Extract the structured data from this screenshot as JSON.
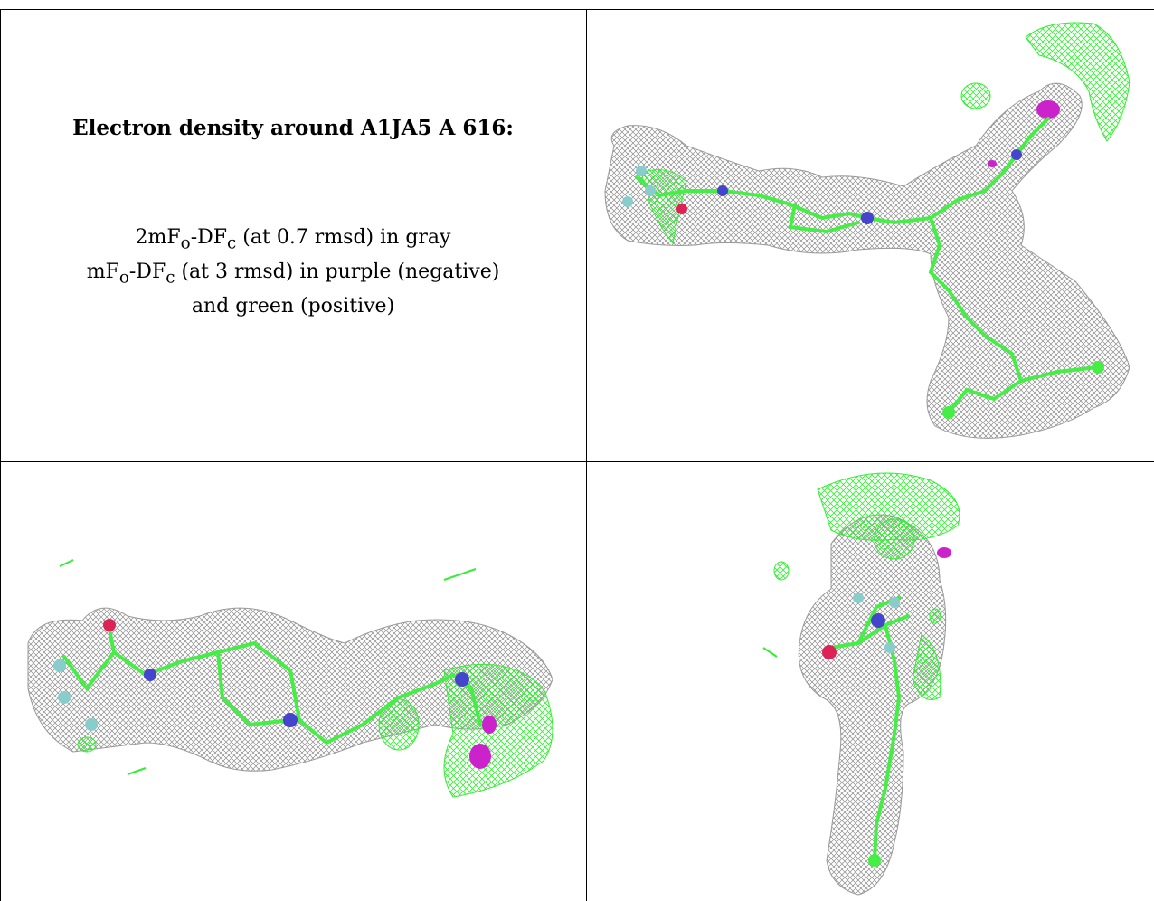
{
  "caption": {
    "title": "Electron density around A1JA5 A 616:",
    "line1": {
      "prefix": "2mF",
      "sub_o": "o",
      "mid": "-DF",
      "sub_c": "c",
      "suffix": " (at 0.7 rmsd) in gray"
    },
    "line2": {
      "prefix": "mF",
      "sub_o": "o",
      "mid": "-DF",
      "sub_c": "c",
      "suffix": " (at 3 rmsd) in purple (negative)"
    },
    "line3": "and green (positive)"
  },
  "colors": {
    "density_2fofc": "#8a8a8a",
    "difference_positive": "#33ee33",
    "difference_negative": "#cc22cc",
    "carbon": "#44ee44",
    "nitrogen": "#4444cc",
    "oxygen": "#dd2255",
    "fluorine": "#88cccc"
  },
  "panels": [
    {
      "id": "top-right",
      "view": "density-view-1"
    },
    {
      "id": "bottom-left",
      "view": "density-view-2"
    },
    {
      "id": "bottom-right",
      "view": "density-view-3"
    }
  ]
}
